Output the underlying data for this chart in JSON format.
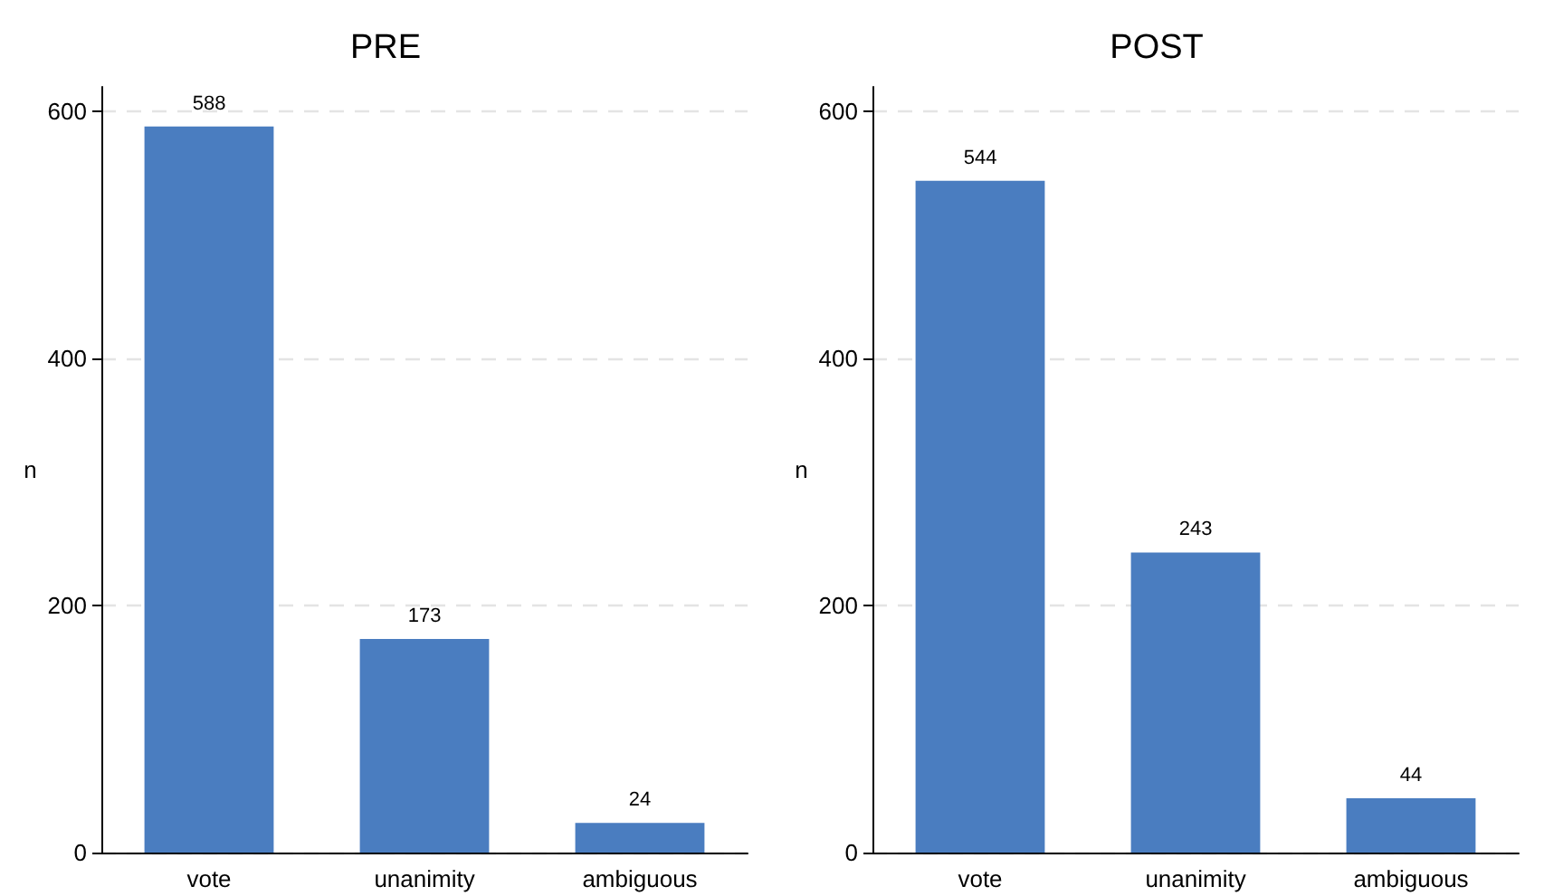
{
  "chart_data": [
    {
      "type": "bar",
      "title": "PRE",
      "ylabel": "n",
      "categories": [
        "vote",
        "unanimity",
        "ambiguous"
      ],
      "values": [
        588,
        173,
        24
      ],
      "color": "#4a7dc0",
      "data_labels": true,
      "ylim": [
        0,
        620
      ],
      "yticks": [
        0,
        200,
        400,
        600
      ],
      "grid": "y"
    },
    {
      "type": "bar",
      "title": "POST",
      "ylabel": "n",
      "categories": [
        "vote",
        "unanimity",
        "ambiguous"
      ],
      "values": [
        544,
        243,
        44
      ],
      "color": "#4a7dc0",
      "data_labels": true,
      "ylim": [
        0,
        620
      ],
      "yticks": [
        0,
        200,
        400,
        600
      ],
      "grid": "y"
    }
  ]
}
